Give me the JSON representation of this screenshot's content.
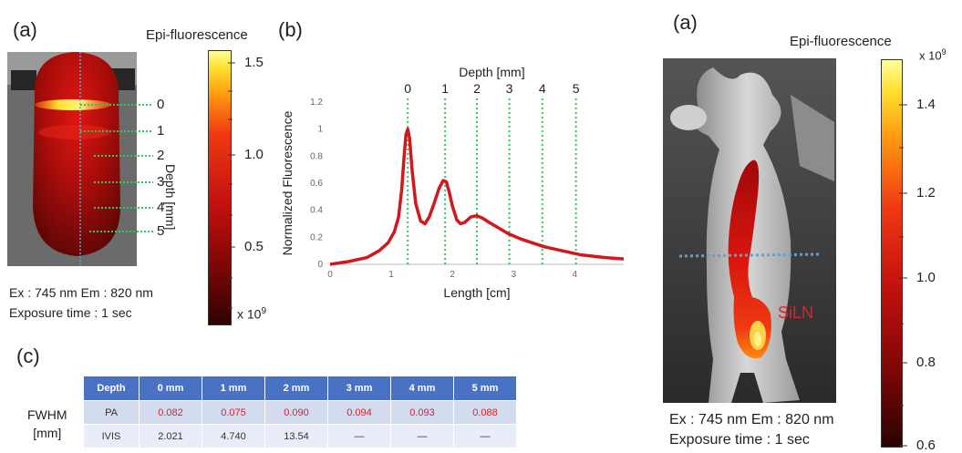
{
  "left": {
    "label_a": "(a)",
    "label_b": "(b)",
    "label_c": "(c)",
    "colorbar_title": "Epi-fluorescence",
    "colorbar_ticks": [
      "1.5",
      "1.0",
      "0.5"
    ],
    "colorbar_unit": "x 10",
    "colorbar_exp": "9",
    "depth_axis_label": "Depth [mm]",
    "depth_marks": [
      "0",
      "1",
      "2",
      "3",
      "4",
      "5"
    ],
    "caption_line1": "Ex : 745 nm Em : 820 nm",
    "caption_line2": "Exposure time : 1 sec"
  },
  "chart_data": {
    "type": "line",
    "title": "",
    "top_axis_label": "Depth [mm]",
    "top_ticks": [
      "0",
      "1",
      "2",
      "3",
      "4",
      "5"
    ],
    "top_tick_positions_cm": [
      1.27,
      1.88,
      2.4,
      2.93,
      3.47,
      4.02
    ],
    "xlabel": "Length [cm]",
    "ylabel": "Normalized Fluorescence",
    "xlim": [
      0,
      4.8
    ],
    "ylim": [
      0,
      1.2
    ],
    "xticks": [
      0,
      1,
      2,
      3,
      4
    ],
    "yticks": [
      0,
      0.2,
      0.4,
      0.6,
      0.8,
      1,
      1.2
    ],
    "series": [
      {
        "color": "#d0191e",
        "x": [
          0,
          0.3,
          0.6,
          0.8,
          0.95,
          1.05,
          1.12,
          1.17,
          1.21,
          1.24,
          1.27,
          1.3,
          1.34,
          1.4,
          1.48,
          1.55,
          1.62,
          1.7,
          1.78,
          1.85,
          1.9,
          1.95,
          2.0,
          2.07,
          2.13,
          2.2,
          2.3,
          2.4,
          2.5,
          2.6,
          2.75,
          2.9,
          3.1,
          3.3,
          3.5,
          3.7,
          3.9,
          4.1,
          4.3,
          4.5,
          4.8
        ],
        "y": [
          0.0,
          0.02,
          0.05,
          0.1,
          0.16,
          0.24,
          0.35,
          0.55,
          0.8,
          0.96,
          1.0,
          0.93,
          0.7,
          0.45,
          0.32,
          0.3,
          0.35,
          0.45,
          0.56,
          0.62,
          0.61,
          0.53,
          0.43,
          0.33,
          0.3,
          0.31,
          0.35,
          0.36,
          0.34,
          0.31,
          0.27,
          0.23,
          0.19,
          0.16,
          0.13,
          0.11,
          0.09,
          0.07,
          0.06,
          0.05,
          0.04
        ]
      }
    ]
  },
  "table": {
    "headers": [
      "Depth",
      "0 mm",
      "1 mm",
      "2 mm",
      "3 mm",
      "4 mm",
      "5 mm"
    ],
    "row_label_line1": "FWHM",
    "row_label_line2": "[mm]",
    "rows": [
      {
        "name": "PA",
        "values": [
          "0.082",
          "0.075",
          "0.090",
          "0.094",
          "0.093",
          "0.088"
        ]
      },
      {
        "name": "IVIS",
        "values": [
          "2.021",
          "4.740",
          "13.54",
          "—",
          "—",
          "—"
        ]
      }
    ]
  },
  "right": {
    "label_a": "(a)",
    "colorbar_title": "Epi-fluorescence",
    "colorbar_unit": "x 10",
    "colorbar_exp": "9",
    "colorbar_ticks": [
      "1.4",
      "1.2",
      "1.0",
      "0.8",
      "0.6"
    ],
    "annotation": "SiLN",
    "caption_line1": "Ex : 745 nm Em : 820 nm",
    "caption_line2": "Exposure time : 1 sec"
  },
  "colors": {
    "accent_blue": "#4a72c4",
    "red_values": "#e0202a",
    "curve": "#d0191e"
  }
}
